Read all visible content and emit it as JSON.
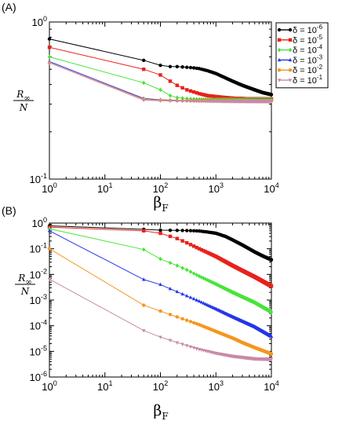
{
  "chart_data": [
    {
      "type": "line",
      "panel_label": "(A)",
      "xlabel": "βF",
      "ylabel": "R∞ / N",
      "xscale": "log",
      "yscale": "log",
      "xlim": [
        1,
        10000
      ],
      "ylim": [
        0.1,
        1
      ],
      "x_ticks": [
        "10^0",
        "10^1",
        "10^2",
        "10^3",
        "10^4"
      ],
      "y_ticks": [
        "10^-1",
        "10^0"
      ],
      "legend_position": "top-right",
      "series": [
        {
          "name": "δ = 10^-6",
          "color": "#000000",
          "marker": "circle",
          "x": [
            1,
            50,
            100,
            150,
            200,
            300,
            400,
            500,
            700,
            1000,
            1500,
            2000,
            3000,
            5000,
            7000,
            10000
          ],
          "y": [
            0.78,
            0.57,
            0.53,
            0.52,
            0.52,
            0.515,
            0.51,
            0.505,
            0.49,
            0.47,
            0.44,
            0.42,
            0.395,
            0.37,
            0.355,
            0.345
          ]
        },
        {
          "name": "δ = 10^-5",
          "color": "#e8221b",
          "marker": "square",
          "x": [
            1,
            50,
            100,
            150,
            200,
            300,
            500,
            700,
            1000,
            1500,
            2000,
            3000,
            5000,
            10000
          ],
          "y": [
            0.69,
            0.5,
            0.46,
            0.42,
            0.395,
            0.37,
            0.35,
            0.34,
            0.335,
            0.33,
            0.327,
            0.325,
            0.324,
            0.323
          ]
        },
        {
          "name": "δ = 10^-4",
          "color": "#48e43a",
          "marker": "diamond",
          "x": [
            1,
            50,
            100,
            150,
            200,
            300,
            500,
            1000,
            2000,
            5000,
            10000
          ],
          "y": [
            0.6,
            0.41,
            0.37,
            0.34,
            0.33,
            0.325,
            0.322,
            0.32,
            0.32,
            0.32,
            0.32
          ]
        },
        {
          "name": "δ = 10^-3",
          "color": "#2437e8",
          "marker": "triangle-up",
          "x": [
            1,
            50,
            100,
            200,
            500,
            1000,
            2000,
            5000,
            10000
          ],
          "y": [
            0.56,
            0.326,
            0.32,
            0.317,
            0.316,
            0.316,
            0.316,
            0.316,
            0.316
          ]
        },
        {
          "name": "δ = 10^-2",
          "color": "#f5961e",
          "marker": "circle",
          "x": [
            1,
            50,
            100,
            200,
            500,
            1000,
            2000,
            5000,
            10000
          ],
          "y": [
            0.55,
            0.322,
            0.318,
            0.316,
            0.315,
            0.315,
            0.315,
            0.315,
            0.315
          ]
        },
        {
          "name": "δ = 10^-1",
          "color": "#c98aa6",
          "marker": "triangle-down",
          "x": [
            1,
            50,
            100,
            200,
            500,
            1000,
            2000,
            5000,
            10000
          ],
          "y": [
            0.55,
            0.318,
            0.315,
            0.314,
            0.313,
            0.313,
            0.313,
            0.313,
            0.313
          ]
        }
      ]
    },
    {
      "type": "line",
      "panel_label": "(B)",
      "xlabel": "βF",
      "ylabel": "R∞ / N",
      "xscale": "log",
      "yscale": "log",
      "xlim": [
        1,
        10000
      ],
      "ylim": [
        1e-06,
        1
      ],
      "x_ticks": [
        "10^0",
        "10^1",
        "10^2",
        "10^3",
        "10^4"
      ],
      "y_ticks": [
        "10^-6",
        "10^-5",
        "10^-4",
        "10^-3",
        "10^-2",
        "10^-1",
        "10^0"
      ],
      "legend_position": "none",
      "series": [
        {
          "name": "δ = 10^-6",
          "color": "#000000",
          "marker": "circle",
          "x": [
            1,
            50,
            100,
            200,
            300,
            500,
            700,
            1000,
            1500,
            2000,
            3000,
            5000,
            7000,
            10000
          ],
          "y": [
            0.78,
            0.57,
            0.53,
            0.52,
            0.51,
            0.49,
            0.45,
            0.4,
            0.3,
            0.22,
            0.14,
            0.075,
            0.052,
            0.037
          ]
        },
        {
          "name": "δ = 10^-5",
          "color": "#e8221b",
          "marker": "square",
          "x": [
            1,
            50,
            100,
            200,
            300,
            500,
            1000,
            2000,
            3000,
            5000,
            10000
          ],
          "y": [
            0.69,
            0.5,
            0.4,
            0.25,
            0.17,
            0.1,
            0.05,
            0.022,
            0.014,
            0.008,
            0.0035
          ]
        },
        {
          "name": "δ = 10^-4",
          "color": "#48e43a",
          "marker": "diamond",
          "x": [
            1,
            50,
            100,
            200,
            300,
            500,
            1000,
            2000,
            5000,
            10000
          ],
          "y": [
            0.6,
            0.093,
            0.04,
            0.022,
            0.015,
            0.0085,
            0.0042,
            0.002,
            0.0008,
            0.00034
          ]
        },
        {
          "name": "δ = 10^-3",
          "color": "#2437e8",
          "marker": "triangle-up",
          "x": [
            1,
            50,
            100,
            200,
            500,
            1000,
            2000,
            5000,
            10000
          ],
          "y": [
            0.5,
            0.0063,
            0.004,
            0.0021,
            0.0009,
            0.00045,
            0.00022,
            9e-05,
            3.8e-05
          ]
        },
        {
          "name": "δ = 10^-2",
          "color": "#f5961e",
          "marker": "circle",
          "x": [
            1,
            50,
            100,
            200,
            500,
            1000,
            2000,
            3000,
            5000,
            10000
          ],
          "y": [
            0.1,
            0.00063,
            0.00037,
            0.00022,
            0.00011,
            6e-05,
            3.3e-05,
            2.2e-05,
            1.4e-05,
            8e-06
          ]
        },
        {
          "name": "δ = 10^-1",
          "color": "#c98aa6",
          "marker": "triangle-down",
          "x": [
            1,
            50,
            100,
            200,
            500,
            1000,
            2000,
            5000,
            10000
          ],
          "y": [
            0.0065,
            6.5e-05,
            3.6e-05,
            2.2e-05,
            1.2e-05,
            8.5e-06,
            6.5e-06,
            5.2e-06,
            5e-06
          ]
        }
      ]
    }
  ]
}
